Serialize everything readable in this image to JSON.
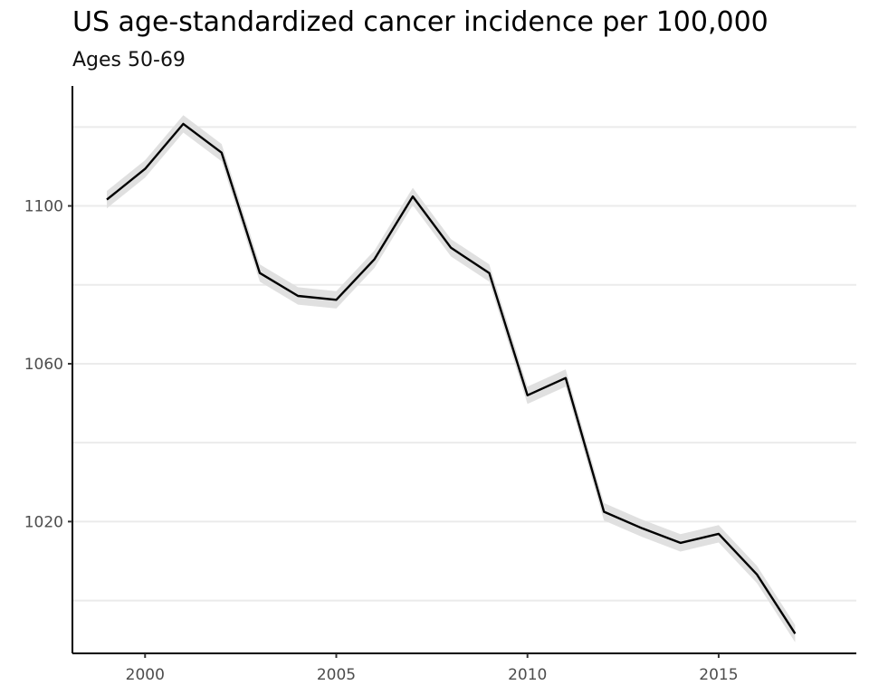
{
  "chart_data": {
    "type": "line",
    "title": "US age-standardized cancer incidence per 100,000",
    "subtitle": "Ages 50-69",
    "xlabel": "",
    "ylabel": "",
    "x": [
      1999,
      2000,
      2001,
      2002,
      2003,
      2004,
      2005,
      2006,
      2007,
      2008,
      2009,
      2010,
      2011,
      2012,
      2013,
      2014,
      2015,
      2016,
      2017
    ],
    "series": [
      {
        "values": [
          1101.6,
          1109.4,
          1120.8,
          1113.5,
          1083.0,
          1077.2,
          1076.2,
          1086.5,
          1102.4,
          1089.4,
          1083.0,
          1052.0,
          1056.4,
          1022.5,
          1018.3,
          1014.6,
          1016.9,
          1006.6,
          991.6
        ],
        "band_halfwidth": 2.2
      }
    ],
    "xlim": [
      1998.1,
      2018.6
    ],
    "ylim": [
      986.6,
      1130.4
    ],
    "xticks": [
      2000,
      2005,
      2010,
      2015
    ],
    "xtick_labels": [
      "2000",
      "2005",
      "2010",
      "2015"
    ],
    "yticks": [
      1020,
      1060,
      1100
    ],
    "ytick_labels": [
      "1020",
      "1060",
      "1100"
    ],
    "y_minor_gridlines": [
      1000,
      1040,
      1080,
      1120
    ],
    "grid": "horizontal",
    "legend": "none",
    "colors": {
      "line": "#000000",
      "band": "#e0e0e0",
      "grid": "#ebebeb",
      "axis": "#000000",
      "tick_label": "#4d4d4d"
    }
  }
}
